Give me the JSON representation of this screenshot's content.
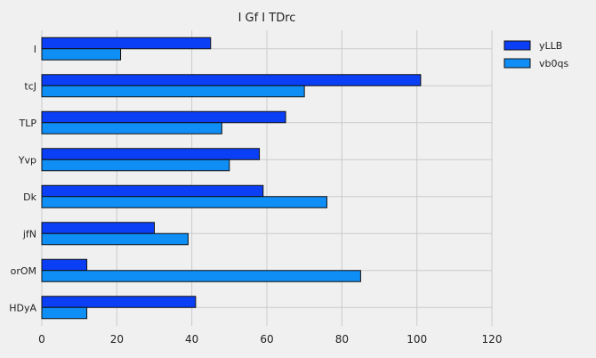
{
  "chart_data": {
    "type": "bar",
    "orientation": "horizontal",
    "title": "I Gf I TDrc",
    "categories": [
      "I",
      "tcJ",
      "TLP",
      "Yvp",
      "Dk",
      "jfN",
      "orOM",
      "HDyA"
    ],
    "series": [
      {
        "name": "yLLB",
        "color": "#0b3ff5",
        "values": [
          45,
          101,
          65,
          58,
          59,
          30,
          12,
          41
        ]
      },
      {
        "name": "vb0qs",
        "color": "#0f8ef5",
        "values": [
          21,
          70,
          48,
          50,
          76,
          39,
          85,
          12
        ]
      }
    ],
    "xlim": [
      0,
      120
    ],
    "xticks": [
      0,
      20,
      40,
      60,
      80,
      100,
      120
    ],
    "xticklabels": [
      "0",
      "20",
      "40",
      "60",
      "80",
      "100",
      "120"
    ],
    "xlabel": "",
    "ylabel": "",
    "grid": true,
    "legend_position": "top-right"
  }
}
